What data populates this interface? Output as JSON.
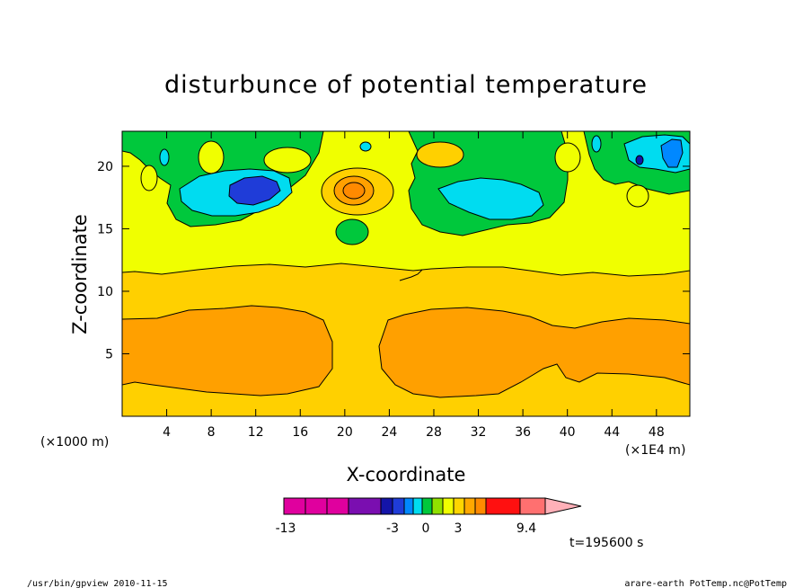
{
  "chart_data": {
    "type": "heatmap",
    "title": "disturbunce of potential temperature",
    "xlabel": "X-coordinate",
    "ylabel": "Z-coordinate",
    "x_range": [
      0,
      51
    ],
    "y_range": [
      0,
      22.8
    ],
    "x_ticks": [
      "4",
      "8",
      "12",
      "16",
      "20",
      "24",
      "28",
      "32",
      "36",
      "40",
      "44",
      "48"
    ],
    "y_ticks": [
      "5",
      "10",
      "15",
      "20"
    ],
    "x_unit_left": "(×1000 m)",
    "x_unit_right": "(×1E4 m)",
    "colorbar": {
      "tick_labels": [
        "-13",
        "-3",
        "0",
        "3",
        "9.4"
      ],
      "colors": [
        "#e0009e",
        "#e0009e",
        "#e0009e",
        "#7a0eb0",
        "#1414a8",
        "#1f3cd8",
        "#0088ff",
        "#00dcf0",
        "#00c83c",
        "#90e000",
        "#f0ff00",
        "#ffd500",
        "#ffa800",
        "#ff8a00",
        "#ff1010",
        "#ff7070",
        "#ffb0b8"
      ]
    },
    "time_label": "t=195600 s"
  },
  "footer": {
    "left": "/usr/bin/gpview   2010-11-15",
    "right": "arare-earth_PotTemp.nc@PotTemp"
  },
  "colors": {
    "orange_dark": "#ffa000",
    "orange_light": "#ffd000",
    "yellow": "#f0ff00",
    "green": "#00c83c",
    "cyan": "#00dcf0",
    "blue": "#0088ff",
    "navy": "#1414a8",
    "red": "#ff1010",
    "peach": "#ff8a00"
  }
}
